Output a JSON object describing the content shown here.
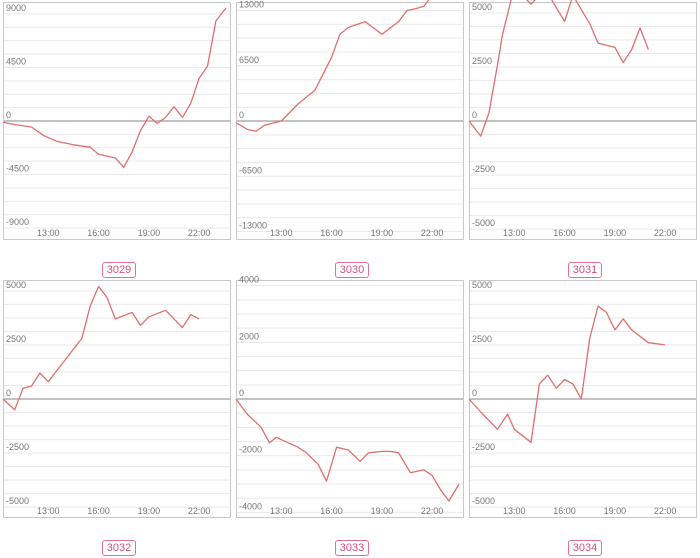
{
  "colors": {
    "line": "#e06f6f",
    "zero_line": "#9e9e9e",
    "grid": "#e9e9e9",
    "frame": "#c8c8c8",
    "badge": "#d4507f"
  },
  "x_tick_labels": [
    "13:00",
    "16:00",
    "19:00",
    "22:00"
  ],
  "chart_data": [
    {
      "type": "line",
      "label": "3029",
      "ylim": [
        -10000,
        10000
      ],
      "y_ticks": [
        9000,
        4500,
        0,
        -4500,
        -9000
      ],
      "y_tick_labels": [
        "9000",
        "4500",
        "0",
        "-4500",
        "-9000"
      ],
      "x_ticks": [
        13,
        16,
        19,
        22
      ],
      "xlim": [
        10.3,
        23.9
      ],
      "x": [
        10.3,
        11,
        12,
        12.7,
        13.5,
        14.5,
        15.5,
        16,
        17,
        17.5,
        18,
        18.5,
        19,
        19.5,
        20,
        20.5,
        21,
        21.5,
        22,
        22.5,
        23,
        23.6
      ],
      "y": [
        -100,
        -300,
        -500,
        -1200,
        -1700,
        -2000,
        -2200,
        -2800,
        -3100,
        -3900,
        -2600,
        -800,
        400,
        -200,
        300,
        1200,
        300,
        1500,
        3600,
        4600,
        8400,
        9500
      ]
    },
    {
      "type": "line",
      "label": "3030",
      "ylim": [
        -14000,
        14000
      ],
      "y_ticks": [
        13000,
        6500,
        0,
        -6500,
        -13000
      ],
      "y_tick_labels": [
        "13000",
        "6500",
        "0",
        "-6500",
        "-13000"
      ],
      "x_ticks": [
        13,
        16,
        19,
        22
      ],
      "xlim": [
        10.3,
        23.9
      ],
      "x": [
        10.3,
        11,
        11.5,
        12,
        13,
        14,
        15,
        16,
        16.5,
        17,
        18,
        19,
        20,
        20.5,
        21,
        21.5,
        22,
        22.5
      ],
      "y": [
        -200,
        -1000,
        -1200,
        -500,
        0,
        2000,
        3600,
        7500,
        10200,
        11000,
        11700,
        10200,
        11700,
        13000,
        13200,
        13500,
        14800,
        14500
      ]
    },
    {
      "type": "line",
      "label": "3031",
      "ylim": [
        -5500,
        5500
      ],
      "y_ticks": [
        5000,
        2500,
        0,
        -2500,
        -5000
      ],
      "y_tick_labels": [
        "5000",
        "2500",
        "0",
        "-2500",
        "-5000"
      ],
      "x_ticks": [
        13,
        16,
        19,
        22
      ],
      "xlim": [
        10.3,
        23.9
      ],
      "x": [
        10.3,
        11,
        11.5,
        12,
        12.3,
        13,
        14,
        14.5,
        15,
        16,
        16.5,
        17.5,
        18,
        19,
        19.5,
        20,
        20.5,
        21
      ],
      "y": [
        0,
        -700,
        400,
        2600,
        4000,
        6200,
        5400,
        5800,
        5900,
        4600,
        5800,
        4500,
        3600,
        3400,
        2700,
        3300,
        4300,
        3300
      ]
    },
    {
      "type": "line",
      "label": "3032",
      "ylim": [
        -5500,
        5500
      ],
      "y_ticks": [
        5000,
        2500,
        0,
        -2500,
        -5000
      ],
      "y_tick_labels": [
        "5000",
        "2500",
        "0",
        "-2500",
        "-5000"
      ],
      "x_ticks": [
        13,
        16,
        19,
        22
      ],
      "xlim": [
        10.3,
        23.9
      ],
      "x": [
        10.3,
        11,
        11.5,
        12,
        12.5,
        13,
        13.5,
        14,
        14.5,
        15,
        15.5,
        16,
        16.5,
        17,
        18,
        18.5,
        19,
        20,
        20.5,
        21,
        21.5,
        22
      ],
      "y": [
        0,
        -500,
        500,
        600,
        1200,
        800,
        1300,
        1800,
        2300,
        2800,
        4300,
        5200,
        4700,
        3700,
        4000,
        3400,
        3800,
        4100,
        3700,
        3300,
        3900,
        3700
      ]
    },
    {
      "type": "line",
      "label": "3033",
      "ylim": [
        -4200,
        4200
      ],
      "y_ticks": [
        4000,
        2000,
        0,
        -2000,
        -4000
      ],
      "y_tick_labels": [
        "4000",
        "2000",
        "0",
        "-2000",
        "-4000"
      ],
      "x_ticks": [
        13,
        16,
        19,
        22
      ],
      "xlim": [
        10.3,
        23.9
      ],
      "x": [
        10.3,
        11,
        11.8,
        12.3,
        12.7,
        14,
        14.5,
        15.2,
        15.7,
        16.3,
        17,
        17.7,
        18.2,
        19,
        19.5,
        20,
        20.7,
        21.5,
        22,
        22.5,
        23,
        23.6
      ],
      "y": [
        0,
        -550,
        -1000,
        -1550,
        -1350,
        -1700,
        -1900,
        -2300,
        -2900,
        -1700,
        -1800,
        -2200,
        -1900,
        -1850,
        -1850,
        -1900,
        -2600,
        -2500,
        -2700,
        -3200,
        -3600,
        -3000
      ]
    },
    {
      "type": "line",
      "label": "3034",
      "ylim": [
        -5500,
        5500
      ],
      "y_ticks": [
        5000,
        2500,
        0,
        -2500,
        -5000
      ],
      "y_tick_labels": [
        "5000",
        "2500",
        "0",
        "-2500",
        "-5000"
      ],
      "x_ticks": [
        13,
        16,
        19,
        22
      ],
      "xlim": [
        10.3,
        23.9
      ],
      "x": [
        10.3,
        11,
        12,
        12.6,
        13,
        14,
        14.5,
        15,
        15.5,
        16,
        16.5,
        17,
        17.5,
        18,
        18.5,
        19,
        19.5,
        20,
        20.5,
        21,
        22
      ],
      "y": [
        0,
        -600,
        -1400,
        -700,
        -1400,
        -2000,
        700,
        1100,
        500,
        900,
        700,
        0,
        2800,
        4300,
        4000,
        3200,
        3700,
        3200,
        2900,
        2600,
        2500
      ]
    }
  ]
}
